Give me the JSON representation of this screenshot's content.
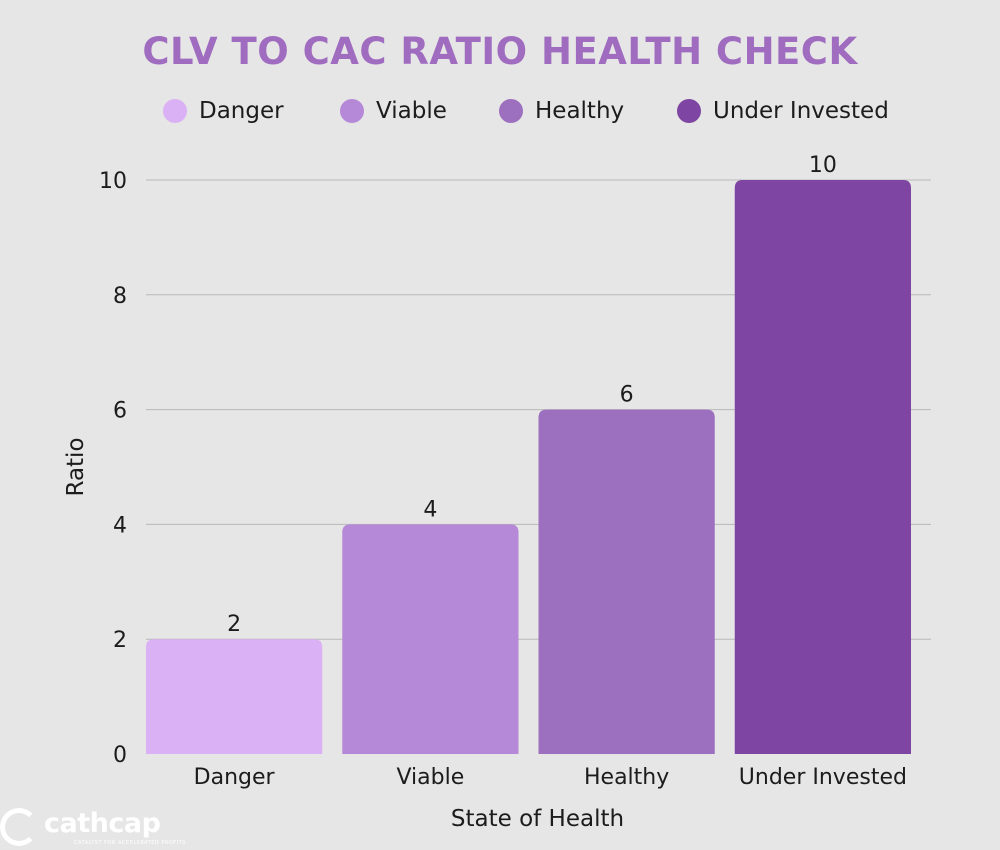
{
  "chart_data": {
    "type": "bar",
    "title": "CLV TO CAC RATIO HEALTH CHECK",
    "categories": [
      "Danger",
      "Viable",
      "Healthy",
      "Under Invested"
    ],
    "values": [
      2,
      4,
      6,
      10
    ],
    "colors": [
      "#d9b1f4",
      "#b688d8",
      "#9d6fbf",
      "#7e45a3"
    ],
    "xlabel": "State of Health",
    "ylabel": "Ratio",
    "ylim": [
      0,
      10
    ],
    "yticks": [
      "0",
      "2",
      "4",
      "6",
      "8",
      "10"
    ],
    "value_labels": [
      "2",
      "4",
      "6",
      "10"
    ],
    "grid": true,
    "legend": {
      "position": "top",
      "entries": [
        "Danger",
        "Viable",
        "Healthy",
        "Under Invested"
      ]
    }
  },
  "colors": {
    "title": "#a06cc0",
    "background": "#e6e6e6",
    "gridline": "#b9b9b9"
  },
  "logo": {
    "text": "cathcap",
    "tagline": "CATALYST FOR ACCELERATED PROFITS"
  }
}
